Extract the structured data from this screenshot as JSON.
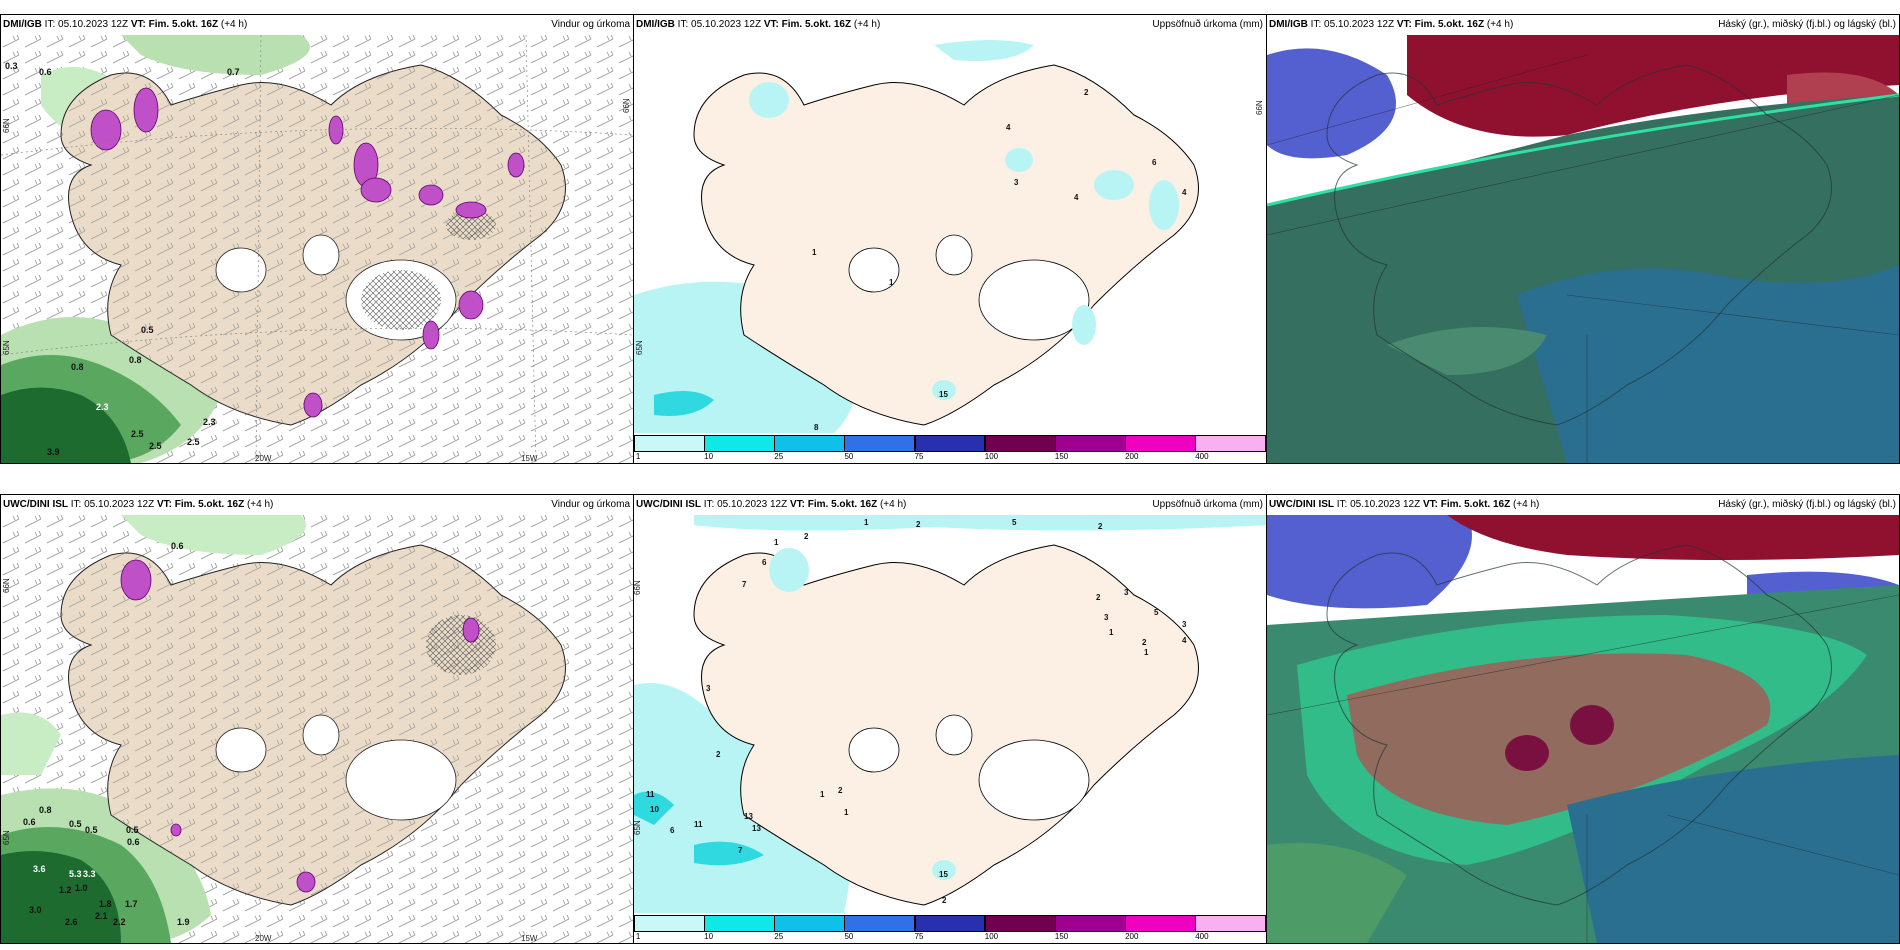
{
  "panels": [
    {
      "src_bold": "DMI/IGB",
      "it": " IT: 05.10.2023 12Z ",
      "vt_bold": "VT: Fim. 5.okt. 16Z",
      "lead": " (+4 h)",
      "title": "Vindur og úrkoma",
      "labels": [
        "0.3",
        "0.6",
        "0.7",
        "0.5",
        "0.8",
        "0.8",
        "2.3",
        "2.5",
        "2.5",
        "2.5",
        "2.3",
        "3.9"
      ],
      "axis": [
        "66N",
        "20W",
        "15W",
        "65N",
        "66N"
      ]
    },
    {
      "src_bold": "DMI/IGB",
      "it": " IT: 05.10.2023 12Z ",
      "vt_bold": "VT: Fim. 5.okt. 16Z",
      "lead": " (+4 h)",
      "title": "Uppsöfnuð úrkoma (mm)",
      "labels": [
        "2",
        "4",
        "6",
        "4",
        "3",
        "4",
        "1",
        "1",
        "15",
        "8"
      ],
      "axis": [
        "66N",
        "65N"
      ]
    },
    {
      "src_bold": "DMI/IGB",
      "it": " IT: 05.10.2023 12Z ",
      "vt_bold": "VT: Fim. 5.okt. 16Z",
      "lead": " (+4 h)",
      "title": "Háský (gr.), miðský (fj.bl.) og lágský (bl.)"
    },
    {
      "src_bold": "UWC/DINI ISL",
      "it": " IT: 05.10.2023 12Z ",
      "vt_bold": "VT: Fim. 5.okt. 16Z",
      "lead": " (+4 h)",
      "title": "Vindur og úrkoma",
      "labels": [
        "0.6",
        "0.8",
        "0.6",
        "0.5",
        "0.5",
        "0.5",
        "0.6",
        "3.6",
        "5.3",
        "3.3",
        "1.2",
        "1.0",
        "3.0",
        "2.6",
        "2.1",
        "1.8",
        "1.7",
        "2.2",
        "1.9"
      ],
      "axis": [
        "66N",
        "20W",
        "15W",
        "65N"
      ]
    },
    {
      "src_bold": "UWC/DINI ISL",
      "it": " IT: 05.10.2023 12Z ",
      "vt_bold": "VT: Fim. 5.okt. 16Z",
      "lead": " (+4 h)",
      "title": "Uppsöfnuð úrkoma (mm)",
      "labels": [
        "1",
        "2",
        "2",
        "5",
        "2",
        "1",
        "6",
        "7",
        "2",
        "3",
        "3",
        "1",
        "5",
        "2",
        "3",
        "4",
        "1",
        "3",
        "2",
        "11",
        "10",
        "6",
        "11",
        "13",
        "13",
        "7",
        "2",
        "1",
        "1",
        "15",
        "2"
      ],
      "axis": [
        "66N",
        "65N"
      ]
    },
    {
      "src_bold": "UWC/DINI ISL",
      "it": " IT: 05.10.2023 12Z ",
      "vt_bold": "VT: Fim. 5.okt. 16Z",
      "lead": " (+4 h)",
      "title": "Háský (gr.), miðský (fj.bl.) og lágský (bl.)"
    }
  ],
  "colorbar": {
    "ticks": [
      "1",
      "10",
      "25",
      "50",
      "75",
      "100",
      "150",
      "200",
      "400"
    ],
    "colors": [
      "#c8f8f8",
      "#10e8e8",
      "#10c0e8",
      "#3070e8",
      "#2830b0",
      "#700050",
      "#a00090",
      "#f000c0",
      "#f8b0f0"
    ]
  }
}
